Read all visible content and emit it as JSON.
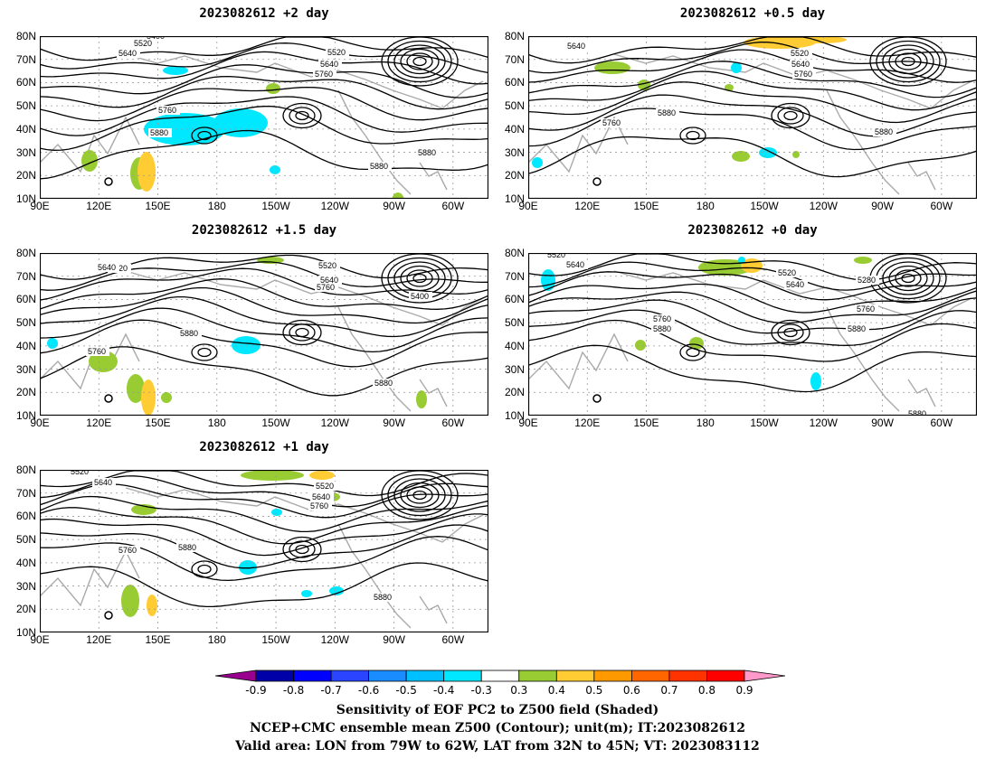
{
  "panels": [
    {
      "title": "2023082612 +2 day"
    },
    {
      "title": "2023082612 +0.5 day"
    },
    {
      "title": "2023082612 +1.5 day"
    },
    {
      "title": "2023082612 +0 day"
    },
    {
      "title": "2023082612 +1 day"
    }
  ],
  "axes": {
    "y_ticks": [
      "80N",
      "70N",
      "60N",
      "50N",
      "40N",
      "30N",
      "20N",
      "10N"
    ],
    "x_ticks": [
      "90E",
      "120E",
      "150E",
      "180",
      "150W",
      "120W",
      "90W",
      "60W"
    ]
  },
  "contour_labels": {
    "p0": [
      "5400",
      "5520",
      "5640",
      "5520",
      "5640",
      "5760",
      "5760",
      "5880",
      "5880",
      "5880"
    ],
    "p1": [
      "5640",
      "5520",
      "5640",
      "5760",
      "5760",
      "5880",
      "5880"
    ],
    "p2": [
      "5520",
      "5640",
      "5520",
      "5640",
      "5760",
      "5400",
      "5760",
      "5880",
      "5880"
    ],
    "p3": [
      "5520",
      "5640",
      "5520",
      "5640",
      "5280",
      "5760",
      "5760",
      "5880",
      "5880",
      "5880"
    ],
    "p4": [
      "5520",
      "5640",
      "5520",
      "5640",
      "5760",
      "5760",
      "5880",
      "5880"
    ]
  },
  "colorbar": {
    "labels": [
      "-0.9",
      "-0.8",
      "-0.7",
      "-0.6",
      "-0.5",
      "-0.4",
      "-0.3",
      "0.3",
      "0.4",
      "0.5",
      "0.6",
      "0.7",
      "0.8",
      "0.9"
    ],
    "colors": [
      "#9a0090",
      "#0000a8",
      "#0000ff",
      "#2a44ff",
      "#1a8cff",
      "#00c0ff",
      "#00e8ff",
      "#ffffff",
      "#99cc33",
      "#ffcc33",
      "#ff9900",
      "#ff6600",
      "#ff3300",
      "#ff0000",
      "#ff99cc"
    ]
  },
  "caption": {
    "line1": "Sensitivity of EOF PC2 to Z500 field (Shaded)",
    "line2": "NCEP+CMC ensemble mean Z500 (Contour); unit(m); IT:2023082612",
    "line3": "Valid area: LON from 79W to 62W, LAT from 32N to 45N; VT: 2023083112"
  }
}
